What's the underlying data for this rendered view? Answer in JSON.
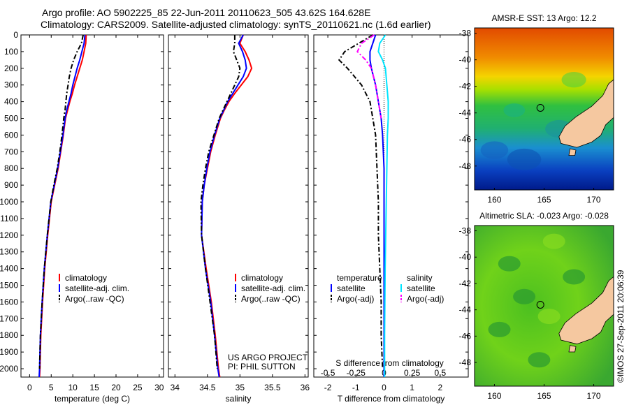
{
  "header": {
    "line1": "Argo profile: AO 5902225_85 22-Jun-2011 20110623_505 43.62S 164.628E",
    "line2": "Climatology: CARS2009. Satellite-adjusted climatology: synTS_20110621.nc (1.6d earlier)"
  },
  "colors": {
    "climatology": "#ff0000",
    "satellite": "#0000ff",
    "argo": "#000000",
    "sal_satellite": "#00e5ff",
    "sal_argo": "#ff00ff",
    "land": "#f5c8a0"
  },
  "depth_axis": {
    "ylim": [
      0,
      2050
    ],
    "ticks": [
      0,
      100,
      200,
      300,
      400,
      500,
      600,
      700,
      800,
      900,
      1000,
      1100,
      1200,
      1300,
      1400,
      1500,
      1600,
      1700,
      1800,
      1900,
      2000
    ]
  },
  "chart_data": [
    {
      "type": "line",
      "xlabel": "temperature (deg C)",
      "xlim": [
        -2,
        31
      ],
      "ylim": [
        0,
        2050
      ],
      "xticks": [
        0,
        5,
        10,
        15,
        20,
        25,
        30
      ],
      "series": [
        {
          "name": "climatology",
          "color": "#ff0000",
          "x": [
            13.1,
            13.0,
            12.6,
            12.2,
            11.6,
            11.0,
            10.4,
            9.9,
            9.3,
            8.8,
            8.3,
            7.8,
            7.2,
            6.6,
            5.8,
            5.0,
            4.2,
            3.5,
            3.0,
            2.6,
            2.4,
            2.3
          ],
          "y": [
            0,
            50,
            100,
            150,
            200,
            250,
            300,
            350,
            400,
            450,
            500,
            600,
            700,
            800,
            900,
            1000,
            1200,
            1400,
            1600,
            1800,
            2000,
            2050
          ]
        },
        {
          "name": "satellite-adj. clim.",
          "color": "#0000ff",
          "x": [
            12.8,
            12.6,
            12.1,
            11.6,
            11.0,
            10.5,
            10.0,
            9.6,
            9.1,
            8.6,
            8.2,
            7.7,
            7.1,
            6.5,
            5.7,
            4.9,
            4.1,
            3.4,
            2.9,
            2.5,
            2.3,
            2.2
          ],
          "y": [
            0,
            50,
            100,
            150,
            200,
            250,
            300,
            350,
            400,
            450,
            500,
            600,
            700,
            800,
            900,
            1000,
            1200,
            1400,
            1600,
            1800,
            2000,
            2050
          ]
        },
        {
          "name": "Argo(..raw -QC)",
          "color": "#000000",
          "dash": true,
          "x": [
            12.4,
            12.0,
            11.0,
            10.2,
            9.6,
            9.2,
            8.9,
            8.6,
            8.4,
            8.2,
            7.9,
            7.5,
            7.0,
            6.4,
            5.6,
            4.9,
            4.1,
            3.4,
            2.9,
            2.5,
            2.3
          ],
          "y": [
            0,
            50,
            100,
            150,
            200,
            250,
            300,
            350,
            400,
            450,
            500,
            600,
            700,
            800,
            900,
            1000,
            1200,
            1400,
            1600,
            1800,
            2000
          ]
        }
      ],
      "legend": [
        "climatology",
        "satellite-adj. clim.",
        "Argo(..raw -QC)"
      ]
    },
    {
      "type": "line",
      "xlabel": "salinity",
      "xlim": [
        33.9,
        36.05
      ],
      "ylim": [
        0,
        2050
      ],
      "xticks": [
        34,
        34.5,
        35,
        35.5,
        36
      ],
      "xticklabels": [
        "34",
        "34.5",
        "35",
        "35.5",
        "36"
      ],
      "series": [
        {
          "name": "climatology",
          "color": "#ff0000",
          "x": [
            35.05,
            35.0,
            35.08,
            35.14,
            35.18,
            35.12,
            35.02,
            34.92,
            34.83,
            34.76,
            34.7,
            34.62,
            34.55,
            34.5,
            34.45,
            34.42,
            34.41,
            34.48,
            34.56,
            34.62,
            34.67,
            34.69
          ],
          "y": [
            0,
            50,
            100,
            150,
            200,
            250,
            300,
            350,
            400,
            450,
            500,
            600,
            700,
            800,
            900,
            1000,
            1200,
            1400,
            1600,
            1800,
            2000,
            2050
          ]
        },
        {
          "name": "satellite-adj. clim.",
          "color": "#0000ff",
          "x": [
            35.05,
            34.98,
            35.04,
            35.08,
            35.1,
            35.05,
            34.97,
            34.89,
            34.81,
            34.75,
            34.69,
            34.61,
            34.54,
            34.49,
            34.45,
            34.42,
            34.41,
            34.47,
            34.55,
            34.61,
            34.66,
            34.68
          ],
          "y": [
            0,
            50,
            100,
            150,
            200,
            250,
            300,
            350,
            400,
            450,
            500,
            600,
            700,
            800,
            900,
            1000,
            1200,
            1400,
            1600,
            1800,
            2000,
            2050
          ]
        },
        {
          "name": "Argo(..raw -QC)",
          "color": "#000000",
          "dash": true,
          "x": [
            34.92,
            34.92,
            34.9,
            34.95,
            35.0,
            34.98,
            34.92,
            34.86,
            34.8,
            34.74,
            34.68,
            34.6,
            34.52,
            34.47,
            34.43,
            34.4,
            34.41,
            34.47,
            34.54,
            34.61,
            34.65
          ],
          "y": [
            0,
            50,
            100,
            150,
            200,
            250,
            300,
            350,
            400,
            450,
            500,
            600,
            700,
            800,
            900,
            1000,
            1200,
            1400,
            1600,
            1800,
            2000
          ]
        }
      ],
      "legend": [
        "climatology",
        "satellite-adj. clim.",
        "Argo(..raw -QC)"
      ],
      "annotation": [
        "US ARGO PROJECT",
        "PI: PHIL SUTTON"
      ]
    },
    {
      "type": "line",
      "xlabel": "T difference from climatology",
      "top_label": "S difference from climatology",
      "xlim": [
        -2.5,
        3
      ],
      "ylim": [
        0,
        2050
      ],
      "xticks": [
        -2,
        -1,
        0,
        1,
        2
      ],
      "xticklabels": [
        "-2",
        "-1",
        "0",
        "1",
        "2"
      ],
      "sticks": [
        -0.5,
        -0.25,
        0,
        0.25,
        0.5
      ],
      "sticklabels": [
        "-0.5",
        "-0.25",
        "0",
        "0.25",
        "0.5"
      ],
      "series": [
        {
          "name": "temperature satellite",
          "color": "#0000ff",
          "x": [
            -0.3,
            -0.4,
            -0.5,
            -0.5,
            -0.45,
            -0.3,
            -0.2,
            -0.1,
            -0.05,
            0,
            0,
            0,
            0,
            0,
            0,
            0,
            0
          ],
          "y": [
            0,
            50,
            100,
            150,
            200,
            300,
            400,
            500,
            600,
            800,
            1000,
            1200,
            1400,
            1600,
            1800,
            2000,
            2050
          ]
        },
        {
          "name": "temperature Argo(-adj)",
          "color": "#000000",
          "dash": true,
          "x": [
            -0.4,
            -0.9,
            -1.4,
            -1.6,
            -1.3,
            -0.8,
            -0.5,
            -0.4,
            -0.3,
            -0.25,
            -0.2,
            -0.2,
            -0.15,
            -0.1,
            -0.1,
            -0.05
          ],
          "y": [
            0,
            50,
            100,
            150,
            200,
            300,
            400,
            500,
            600,
            800,
            1000,
            1200,
            1400,
            1600,
            1800,
            2000
          ]
        },
        {
          "name": "salinity satellite",
          "color": "#00e5ff",
          "x": [
            0.05,
            -0.15,
            -0.2,
            -0.05,
            0.05,
            0.1,
            0.15,
            0.15,
            0.12,
            0.1,
            0.08,
            0.06,
            0.04,
            0.03,
            0.02,
            0.02,
            0.02
          ],
          "y": [
            0,
            50,
            100,
            150,
            200,
            300,
            400,
            500,
            600,
            800,
            1000,
            1200,
            1400,
            1600,
            1800,
            2000,
            2050
          ]
        },
        {
          "name": "salinity Argo(-adj)",
          "color": "#ff00ff",
          "dash": true,
          "x": [
            -0.35,
            -0.8,
            -0.95,
            -0.65,
            -0.45,
            -0.3,
            -0.2,
            -0.1
          ],
          "y": [
            0,
            50,
            100,
            150,
            200,
            300,
            400,
            500
          ]
        }
      ],
      "legend_headers": [
        "temperature",
        "salinity"
      ],
      "legend": [
        "satellite",
        "Argo(-adj)",
        "satellite",
        "Argo(-adj)"
      ]
    },
    {
      "type": "heatmap",
      "title": "AMSR-E SST: 13 Argo: 12.2",
      "xlim": [
        158,
        172
      ],
      "ylim": [
        -49.8,
        -37.6
      ],
      "xticks": [
        160,
        165,
        170
      ],
      "yticks": [
        -38,
        -40,
        -42,
        -44,
        -46,
        -48
      ],
      "marker": {
        "lon": 164.628,
        "lat": -43.62
      }
    },
    {
      "type": "heatmap",
      "title": "Altimetric SLA: -0.023 Argo: -0.028",
      "xlim": [
        158,
        172
      ],
      "ylim": [
        -49.8,
        -37.6
      ],
      "xticks": [
        160,
        165,
        170
      ],
      "yticks": [
        -38,
        -40,
        -42,
        -44,
        -46,
        -48
      ],
      "marker": {
        "lon": 164.628,
        "lat": -43.62
      }
    }
  ],
  "side_stamp": "©IMOS 27-Sep-2011 20:06:39"
}
